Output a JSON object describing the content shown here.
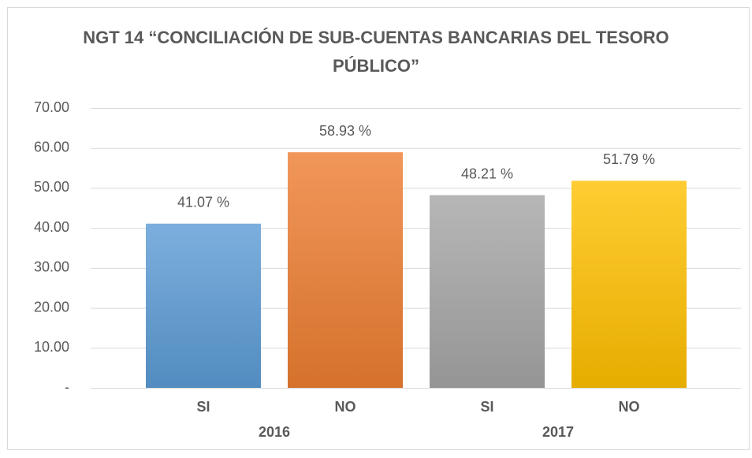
{
  "chart_data": {
    "type": "bar",
    "title": "NGT 14 “CONCILIACIÓN DE SUB-CUENTAS BANCARIAS DEL TESORO PÚBLICO”",
    "categories": [
      "SI",
      "NO",
      "SI",
      "NO"
    ],
    "groups": [
      "2016",
      "2017"
    ],
    "values": [
      41.07,
      58.93,
      48.21,
      51.79
    ],
    "value_labels": [
      "41.07 %",
      "58.93 %",
      "48.21 %",
      "51.79 %"
    ],
    "colors": [
      "#5b9bd5",
      "#ed7d31",
      "#a5a5a5",
      "#ffc000"
    ],
    "ylim": [
      0,
      70
    ],
    "yticks": [
      {
        "value": 0,
        "label": "-"
      },
      {
        "value": 10,
        "label": "10.00"
      },
      {
        "value": 20,
        "label": "20.00"
      },
      {
        "value": 30,
        "label": "30.00"
      },
      {
        "value": 40,
        "label": "40.00"
      },
      {
        "value": 50,
        "label": "50.00"
      },
      {
        "value": 60,
        "label": "60.00"
      },
      {
        "value": 70,
        "label": "70.00"
      }
    ],
    "grid": true
  }
}
